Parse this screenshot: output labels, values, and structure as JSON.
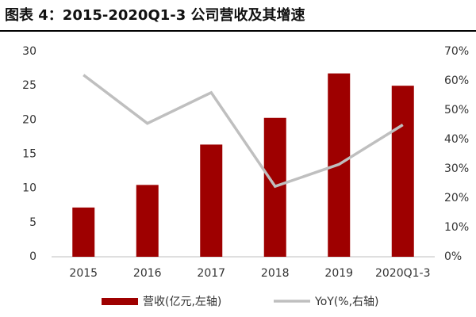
{
  "chart_data": {
    "type": "bar",
    "title": "图表 4：2015-2020Q1-3 公司营收及其增速",
    "categories": [
      "2015",
      "2016",
      "2017",
      "2018",
      "2019",
      "2020Q1-3"
    ],
    "series": [
      {
        "name": "营收(亿元,左轴)",
        "type": "bar",
        "color": "#9e0000",
        "values": [
          7.2,
          10.5,
          16.4,
          20.3,
          26.8,
          25.0
        ]
      },
      {
        "name": "YoY(%,右轴)",
        "type": "line",
        "axis": "y2",
        "color": "#bfbfbf",
        "values": [
          62,
          45.5,
          56,
          24,
          31.5,
          45
        ]
      }
    ],
    "ylim": [
      0,
      30
    ],
    "yticks": [
      0,
      5,
      10,
      15,
      20,
      25,
      30
    ],
    "y2lim": [
      0,
      70
    ],
    "y2ticks": [
      {
        "value": 0,
        "label": "0%"
      },
      {
        "value": 10,
        "label": "10%"
      },
      {
        "value": 20,
        "label": "20%"
      },
      {
        "value": 30,
        "label": "30%"
      },
      {
        "value": 40,
        "label": "40%"
      },
      {
        "value": 50,
        "label": "50%"
      },
      {
        "value": 60,
        "label": "60%"
      },
      {
        "value": 70,
        "label": "70%"
      }
    ],
    "grid": false,
    "legend": "bottom"
  }
}
